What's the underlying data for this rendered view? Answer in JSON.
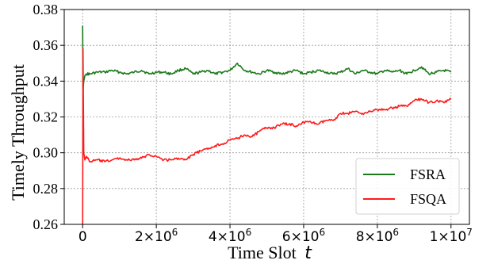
{
  "chart_data": {
    "type": "line",
    "xlabel": "Time Slot",
    "xlabel_var": "t",
    "ylabel": "Timely Throughput",
    "xlim": [
      -500000,
      10500000
    ],
    "ylim": [
      0.26,
      0.38
    ],
    "yticks": [
      0.26,
      0.28,
      0.3,
      0.32,
      0.34,
      0.36,
      0.38
    ],
    "ytick_labels": [
      "0.26",
      "0.28",
      "0.30",
      "0.32",
      "0.34",
      "0.36",
      "0.38"
    ],
    "xticks": [
      0,
      2000000,
      4000000,
      6000000,
      8000000,
      10000000
    ],
    "xtick_labels": [
      {
        "mantissa": "0",
        "exponent": ""
      },
      {
        "mantissa": "2×10",
        "exponent": "6"
      },
      {
        "mantissa": "4×10",
        "exponent": "6"
      },
      {
        "mantissa": "6×10",
        "exponent": "6"
      },
      {
        "mantissa": "8×10",
        "exponent": "6"
      },
      {
        "mantissa": "1×10",
        "exponent": "7"
      }
    ],
    "grid": true,
    "legend_position": "bottom-right",
    "series": [
      {
        "name": "FSRA",
        "color": "#1b7a1b",
        "x": [
          0,
          10000,
          30000,
          60000,
          100000,
          200000,
          400000,
          600000,
          800000,
          1000000,
          1200000,
          1400000,
          1600000,
          1800000,
          2000000,
          2200000,
          2400000,
          2600000,
          2800000,
          3000000,
          3200000,
          3400000,
          3600000,
          3800000,
          4000000,
          4200000,
          4400000,
          4600000,
          4800000,
          5000000,
          5200000,
          5400000,
          5600000,
          5800000,
          6000000,
          6200000,
          6400000,
          6600000,
          6800000,
          7000000,
          7200000,
          7400000,
          7600000,
          7800000,
          8000000,
          8200000,
          8400000,
          8600000,
          8800000,
          9000000,
          9200000,
          9400000,
          9600000,
          9800000,
          10000000
        ],
        "values": [
          0.371,
          0.335,
          0.34,
          0.343,
          0.344,
          0.344,
          0.345,
          0.345,
          0.346,
          0.345,
          0.344,
          0.345,
          0.346,
          0.344,
          0.345,
          0.345,
          0.344,
          0.346,
          0.347,
          0.344,
          0.345,
          0.346,
          0.344,
          0.345,
          0.346,
          0.35,
          0.346,
          0.345,
          0.344,
          0.346,
          0.345,
          0.344,
          0.345,
          0.346,
          0.344,
          0.345,
          0.346,
          0.345,
          0.344,
          0.345,
          0.347,
          0.344,
          0.346,
          0.345,
          0.344,
          0.346,
          0.345,
          0.346,
          0.344,
          0.346,
          0.348,
          0.344,
          0.345,
          0.346,
          0.345
        ]
      },
      {
        "name": "FSQA",
        "color": "#ff1a1a",
        "x": [
          0,
          10000,
          30000,
          60000,
          100000,
          200000,
          400000,
          600000,
          800000,
          1000000,
          1200000,
          1400000,
          1600000,
          1800000,
          2000000,
          2200000,
          2400000,
          2600000,
          2800000,
          3000000,
          3200000,
          3400000,
          3600000,
          3800000,
          4000000,
          4200000,
          4400000,
          4600000,
          4800000,
          5000000,
          5200000,
          5400000,
          5600000,
          5800000,
          6000000,
          6200000,
          6400000,
          6600000,
          6800000,
          7000000,
          7200000,
          7400000,
          7600000,
          7800000,
          8000000,
          8200000,
          8400000,
          8600000,
          8800000,
          9000000,
          9200000,
          9400000,
          9600000,
          9800000,
          10000000
        ],
        "values": [
          0.26,
          0.358,
          0.3,
          0.296,
          0.298,
          0.295,
          0.296,
          0.295,
          0.296,
          0.297,
          0.296,
          0.296,
          0.297,
          0.299,
          0.298,
          0.296,
          0.296,
          0.297,
          0.296,
          0.299,
          0.301,
          0.302,
          0.304,
          0.305,
          0.307,
          0.308,
          0.31,
          0.309,
          0.312,
          0.314,
          0.314,
          0.316,
          0.316,
          0.315,
          0.317,
          0.317,
          0.316,
          0.318,
          0.318,
          0.322,
          0.322,
          0.323,
          0.322,
          0.323,
          0.324,
          0.324,
          0.325,
          0.326,
          0.326,
          0.329,
          0.33,
          0.328,
          0.329,
          0.328,
          0.33
        ]
      }
    ]
  }
}
